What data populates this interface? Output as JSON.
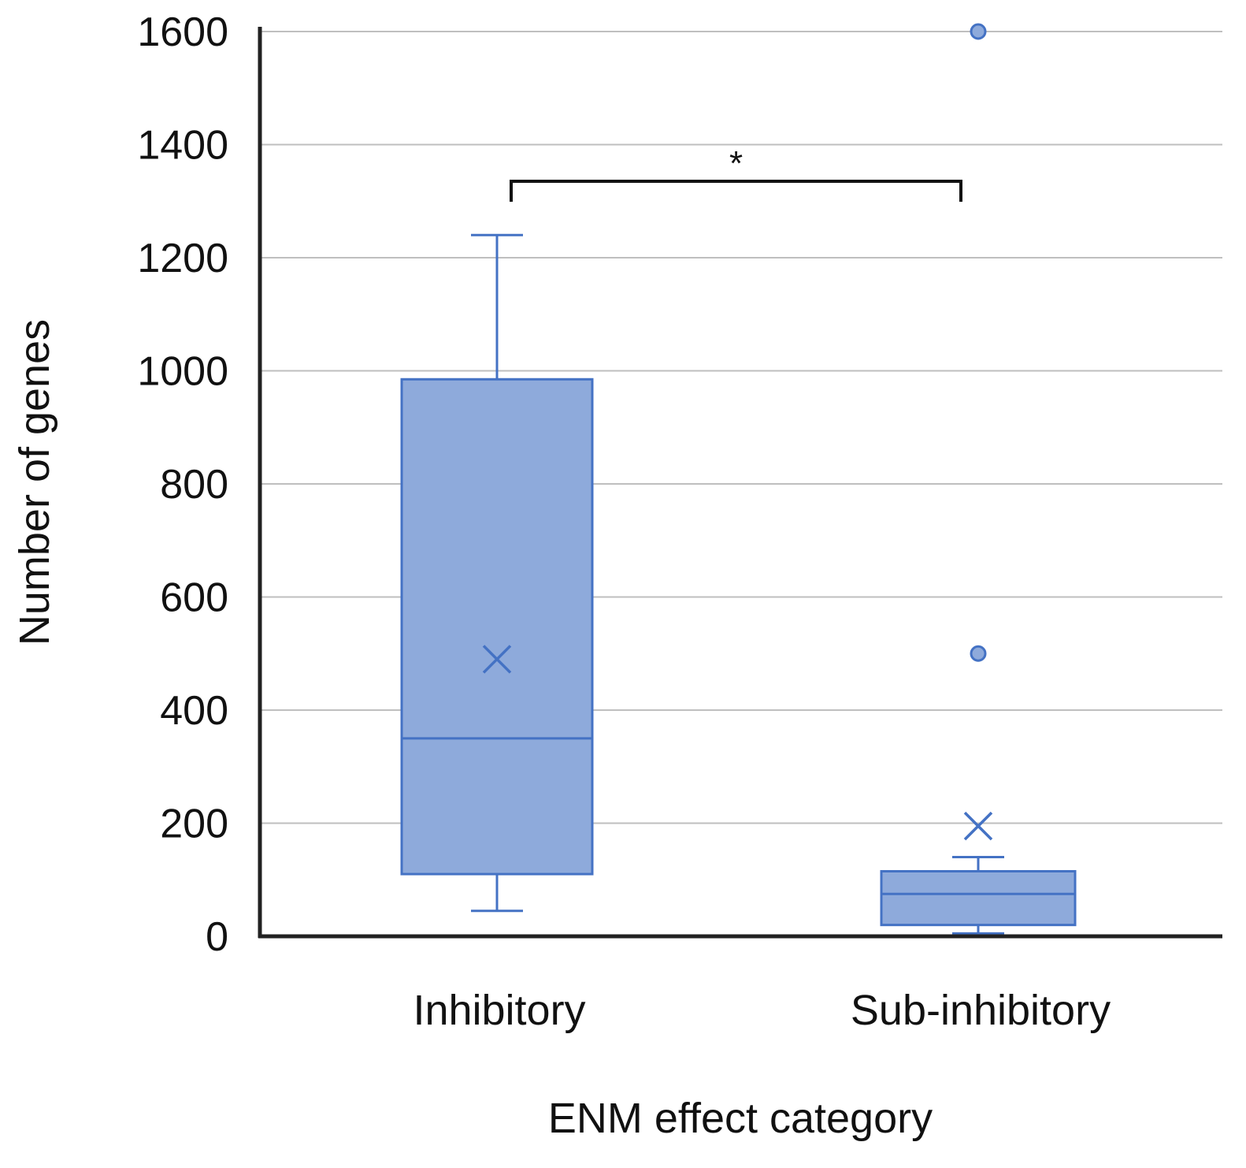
{
  "chart_data": {
    "type": "box",
    "title": "",
    "xlabel": "ENM effect category",
    "ylabel": "Number of genes",
    "ylim": [
      0,
      1600
    ],
    "yticks": [
      0,
      200,
      400,
      600,
      800,
      1000,
      1200,
      1400,
      1600
    ],
    "grid": true,
    "categories": [
      "Inhibitory",
      "Sub-inhibitory"
    ],
    "boxes": [
      {
        "category": "Inhibitory",
        "whisker_low": 45,
        "q1": 110,
        "median": 350,
        "q3": 985,
        "whisker_high": 1240,
        "mean": 490,
        "outliers": []
      },
      {
        "category": "Sub-inhibitory",
        "whisker_low": 5,
        "q1": 20,
        "median": 75,
        "q3": 115,
        "whisker_high": 140,
        "mean": 195,
        "outliers": [
          500,
          1600
        ]
      }
    ],
    "significance": {
      "between": [
        "Inhibitory",
        "Sub-inhibitory"
      ],
      "label": "*"
    },
    "colors": {
      "box_fill": "#8eaadb",
      "box_stroke": "#4472c4",
      "grid": "#bfbfbf",
      "axis": "#222222"
    }
  }
}
